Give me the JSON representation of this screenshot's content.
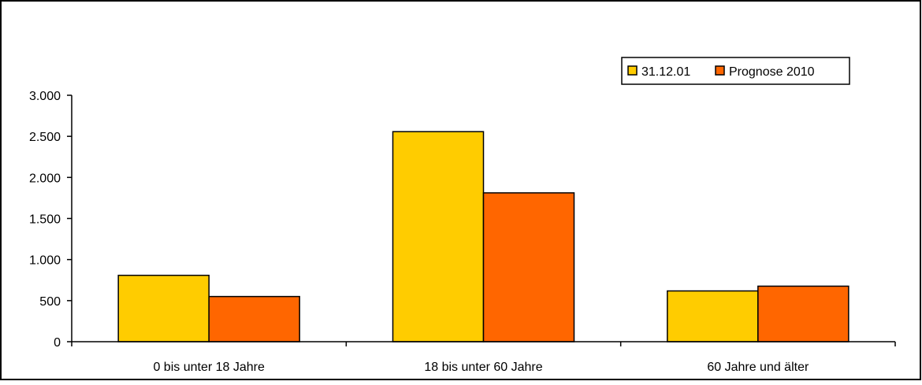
{
  "chart_data": {
    "type": "bar",
    "categories": [
      "0 bis unter 18 Jahre",
      "18 bis unter 60 Jahre",
      "60 Jahre und älter"
    ],
    "series": [
      {
        "name": "31.12.01",
        "values": [
          808,
          2557,
          618
        ],
        "color": "#FFCC00"
      },
      {
        "name": "Prognose 2010",
        "values": [
          550,
          1812,
          676
        ],
        "color": "#FF6600"
      }
    ],
    "ylim": [
      0,
      3000
    ],
    "yticks": [
      0,
      500,
      1000,
      1500,
      2000,
      2500,
      3000
    ],
    "ytick_labels": [
      "0",
      "500",
      "1.000",
      "1.500",
      "2.000",
      "2.500",
      "3.000"
    ],
    "legend_position": "top-right",
    "grid": false,
    "title": "",
    "xlabel": "",
    "ylabel": ""
  }
}
